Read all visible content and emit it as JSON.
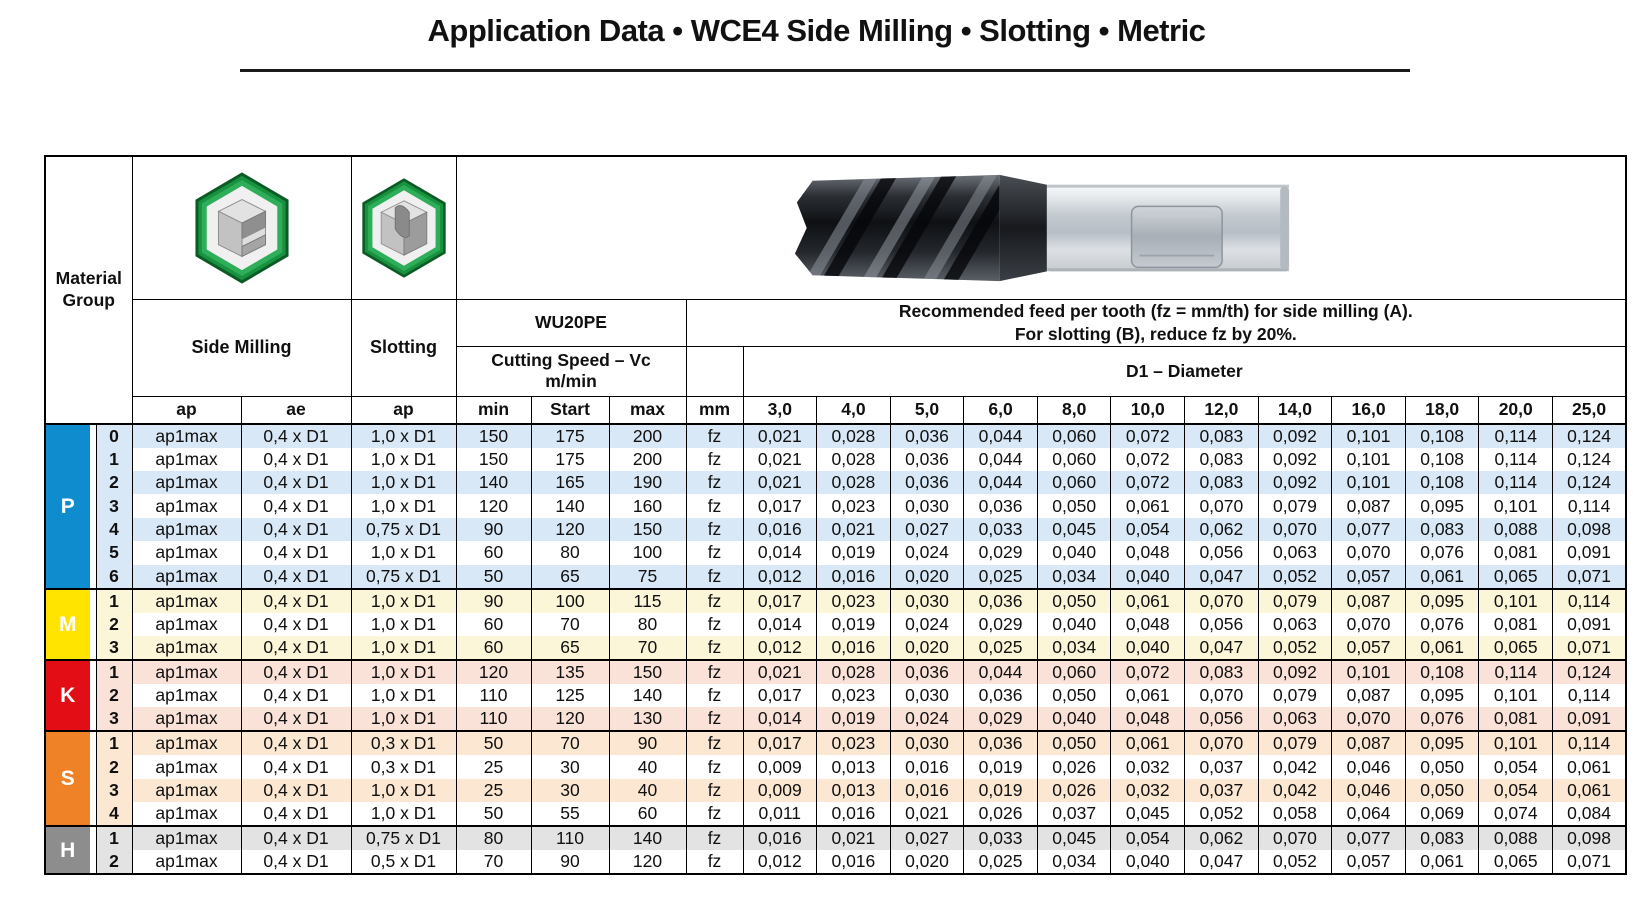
{
  "title": "Application Data • WCE4 Side Milling • Slotting • Metric",
  "colors": {
    "p_blue": "#0e8cce",
    "m_yellow": "#ffe400",
    "k_red": "#e30d15",
    "s_orange": "#ef8226",
    "h_gray": "#8d8d8d",
    "p_tint": "#d9e8f6",
    "m_tint": "#fcf6d9",
    "k_tint": "#fae2d9",
    "s_tint": "#fbe7d2",
    "h_tint": "#e3e3e3"
  },
  "table": {
    "material_group": "Material Group",
    "side_milling": "Side Milling",
    "slotting": "Slotting",
    "grade": "WU20PE",
    "cutting_speed": "Cutting Speed – Vc",
    "cutting_speed_unit": "m/min",
    "feed_note_1": "Recommended feed per tooth (fz = mm/th) for side milling (A).",
    "feed_note_2": "For slotting (B), reduce fz by 20%.",
    "diameter_heading": "D1 – Diameter",
    "col_ap": "ap",
    "col_ae": "ae",
    "col_ap2": "ap",
    "col_min": "min",
    "col_start": "Start",
    "col_max": "max",
    "col_mm": "mm",
    "feed_unit": "fz",
    "diameters": [
      "3,0",
      "4,0",
      "5,0",
      "6,0",
      "8,0",
      "10,0",
      "12,0",
      "14,0",
      "16,0",
      "18,0",
      "20,0",
      "25,0"
    ],
    "groups": [
      {
        "code": "P",
        "color": "#0e8cce",
        "letter_color": "#ffffff",
        "tint": "#d9e8f6",
        "rows": [
          {
            "n": "0",
            "ap": "ap1max",
            "ae": "0,4 x D1",
            "slot": "1,0 x D1",
            "vc": [
              "150",
              "175",
              "200"
            ],
            "fz": [
              "0,021",
              "0,028",
              "0,036",
              "0,044",
              "0,060",
              "0,072",
              "0,083",
              "0,092",
              "0,101",
              "0,108",
              "0,114",
              "0,124"
            ]
          },
          {
            "n": "1",
            "ap": "ap1max",
            "ae": "0,4 x D1",
            "slot": "1,0 x D1",
            "vc": [
              "150",
              "175",
              "200"
            ],
            "fz": [
              "0,021",
              "0,028",
              "0,036",
              "0,044",
              "0,060",
              "0,072",
              "0,083",
              "0,092",
              "0,101",
              "0,108",
              "0,114",
              "0,124"
            ]
          },
          {
            "n": "2",
            "ap": "ap1max",
            "ae": "0,4 x D1",
            "slot": "1,0 x D1",
            "vc": [
              "140",
              "165",
              "190"
            ],
            "fz": [
              "0,021",
              "0,028",
              "0,036",
              "0,044",
              "0,060",
              "0,072",
              "0,083",
              "0,092",
              "0,101",
              "0,108",
              "0,114",
              "0,124"
            ]
          },
          {
            "n": "3",
            "ap": "ap1max",
            "ae": "0,4 x D1",
            "slot": "1,0 x D1",
            "vc": [
              "120",
              "140",
              "160"
            ],
            "fz": [
              "0,017",
              "0,023",
              "0,030",
              "0,036",
              "0,050",
              "0,061",
              "0,070",
              "0,079",
              "0,087",
              "0,095",
              "0,101",
              "0,114"
            ]
          },
          {
            "n": "4",
            "ap": "ap1max",
            "ae": "0,4 x D1",
            "slot": "0,75 x D1",
            "vc": [
              "90",
              "120",
              "150"
            ],
            "fz": [
              "0,016",
              "0,021",
              "0,027",
              "0,033",
              "0,045",
              "0,054",
              "0,062",
              "0,070",
              "0,077",
              "0,083",
              "0,088",
              "0,098"
            ]
          },
          {
            "n": "5",
            "ap": "ap1max",
            "ae": "0,4 x D1",
            "slot": "1,0 x D1",
            "vc": [
              "60",
              "80",
              "100"
            ],
            "fz": [
              "0,014",
              "0,019",
              "0,024",
              "0,029",
              "0,040",
              "0,048",
              "0,056",
              "0,063",
              "0,070",
              "0,076",
              "0,081",
              "0,091"
            ]
          },
          {
            "n": "6",
            "ap": "ap1max",
            "ae": "0,4 x D1",
            "slot": "0,75 x D1",
            "vc": [
              "50",
              "65",
              "75"
            ],
            "fz": [
              "0,012",
              "0,016",
              "0,020",
              "0,025",
              "0,034",
              "0,040",
              "0,047",
              "0,052",
              "0,057",
              "0,061",
              "0,065",
              "0,071"
            ]
          }
        ]
      },
      {
        "code": "M",
        "color": "#ffe400",
        "letter_color": "#ffffff",
        "tint": "#fcf6d9",
        "rows": [
          {
            "n": "1",
            "ap": "ap1max",
            "ae": "0,4 x D1",
            "slot": "1,0 x D1",
            "vc": [
              "90",
              "100",
              "115"
            ],
            "fz": [
              "0,017",
              "0,023",
              "0,030",
              "0,036",
              "0,050",
              "0,061",
              "0,070",
              "0,079",
              "0,087",
              "0,095",
              "0,101",
              "0,114"
            ]
          },
          {
            "n": "2",
            "ap": "ap1max",
            "ae": "0,4 x D1",
            "slot": "1,0 x D1",
            "vc": [
              "60",
              "70",
              "80"
            ],
            "fz": [
              "0,014",
              "0,019",
              "0,024",
              "0,029",
              "0,040",
              "0,048",
              "0,056",
              "0,063",
              "0,070",
              "0,076",
              "0,081",
              "0,091"
            ]
          },
          {
            "n": "3",
            "ap": "ap1max",
            "ae": "0,4 x D1",
            "slot": "1,0 x D1",
            "vc": [
              "60",
              "65",
              "70"
            ],
            "fz": [
              "0,012",
              "0,016",
              "0,020",
              "0,025",
              "0,034",
              "0,040",
              "0,047",
              "0,052",
              "0,057",
              "0,061",
              "0,065",
              "0,071"
            ]
          }
        ]
      },
      {
        "code": "K",
        "color": "#e30d15",
        "letter_color": "#ffffff",
        "tint": "#fae2d9",
        "rows": [
          {
            "n": "1",
            "ap": "ap1max",
            "ae": "0,4 x D1",
            "slot": "1,0 x D1",
            "vc": [
              "120",
              "135",
              "150"
            ],
            "fz": [
              "0,021",
              "0,028",
              "0,036",
              "0,044",
              "0,060",
              "0,072",
              "0,083",
              "0,092",
              "0,101",
              "0,108",
              "0,114",
              "0,124"
            ]
          },
          {
            "n": "2",
            "ap": "ap1max",
            "ae": "0,4 x D1",
            "slot": "1,0 x D1",
            "vc": [
              "110",
              "125",
              "140"
            ],
            "fz": [
              "0,017",
              "0,023",
              "0,030",
              "0,036",
              "0,050",
              "0,061",
              "0,070",
              "0,079",
              "0,087",
              "0,095",
              "0,101",
              "0,114"
            ]
          },
          {
            "n": "3",
            "ap": "ap1max",
            "ae": "0,4 x D1",
            "slot": "1,0 x D1",
            "vc": [
              "110",
              "120",
              "130"
            ],
            "fz": [
              "0,014",
              "0,019",
              "0,024",
              "0,029",
              "0,040",
              "0,048",
              "0,056",
              "0,063",
              "0,070",
              "0,076",
              "0,081",
              "0,091"
            ]
          }
        ]
      },
      {
        "code": "S",
        "color": "#ef8226",
        "letter_color": "#ffffff",
        "tint": "#fbe7d2",
        "rows": [
          {
            "n": "1",
            "ap": "ap1max",
            "ae": "0,4 x D1",
            "slot": "0,3 x D1",
            "vc": [
              "50",
              "70",
              "90"
            ],
            "fz": [
              "0,017",
              "0,023",
              "0,030",
              "0,036",
              "0,050",
              "0,061",
              "0,070",
              "0,079",
              "0,087",
              "0,095",
              "0,101",
              "0,114"
            ]
          },
          {
            "n": "2",
            "ap": "ap1max",
            "ae": "0,4 x D1",
            "slot": "0,3 x D1",
            "vc": [
              "25",
              "30",
              "40"
            ],
            "fz": [
              "0,009",
              "0,013",
              "0,016",
              "0,019",
              "0,026",
              "0,032",
              "0,037",
              "0,042",
              "0,046",
              "0,050",
              "0,054",
              "0,061"
            ]
          },
          {
            "n": "3",
            "ap": "ap1max",
            "ae": "0,4 x D1",
            "slot": "1,0 x D1",
            "vc": [
              "25",
              "30",
              "40"
            ],
            "fz": [
              "0,009",
              "0,013",
              "0,016",
              "0,019",
              "0,026",
              "0,032",
              "0,037",
              "0,042",
              "0,046",
              "0,050",
              "0,054",
              "0,061"
            ]
          },
          {
            "n": "4",
            "ap": "ap1max",
            "ae": "0,4 x D1",
            "slot": "1,0 x D1",
            "vc": [
              "50",
              "55",
              "60"
            ],
            "fz": [
              "0,011",
              "0,016",
              "0,021",
              "0,026",
              "0,037",
              "0,045",
              "0,052",
              "0,058",
              "0,064",
              "0,069",
              "0,074",
              "0,084"
            ]
          }
        ]
      },
      {
        "code": "H",
        "color": "#8d8d8d",
        "letter_color": "#ffffff",
        "tint": "#e3e3e3",
        "rows": [
          {
            "n": "1",
            "ap": "ap1max",
            "ae": "0,4 x D1",
            "slot": "0,75 x D1",
            "vc": [
              "80",
              "110",
              "140"
            ],
            "fz": [
              "0,016",
              "0,021",
              "0,027",
              "0,033",
              "0,045",
              "0,054",
              "0,062",
              "0,070",
              "0,077",
              "0,083",
              "0,088",
              "0,098"
            ]
          },
          {
            "n": "2",
            "ap": "ap1max",
            "ae": "0,4 x D1",
            "slot": "0,5 x D1",
            "vc": [
              "70",
              "90",
              "120"
            ],
            "fz": [
              "0,012",
              "0,016",
              "0,020",
              "0,025",
              "0,034",
              "0,040",
              "0,047",
              "0,052",
              "0,057",
              "0,061",
              "0,065",
              "0,071"
            ]
          }
        ]
      }
    ]
  }
}
